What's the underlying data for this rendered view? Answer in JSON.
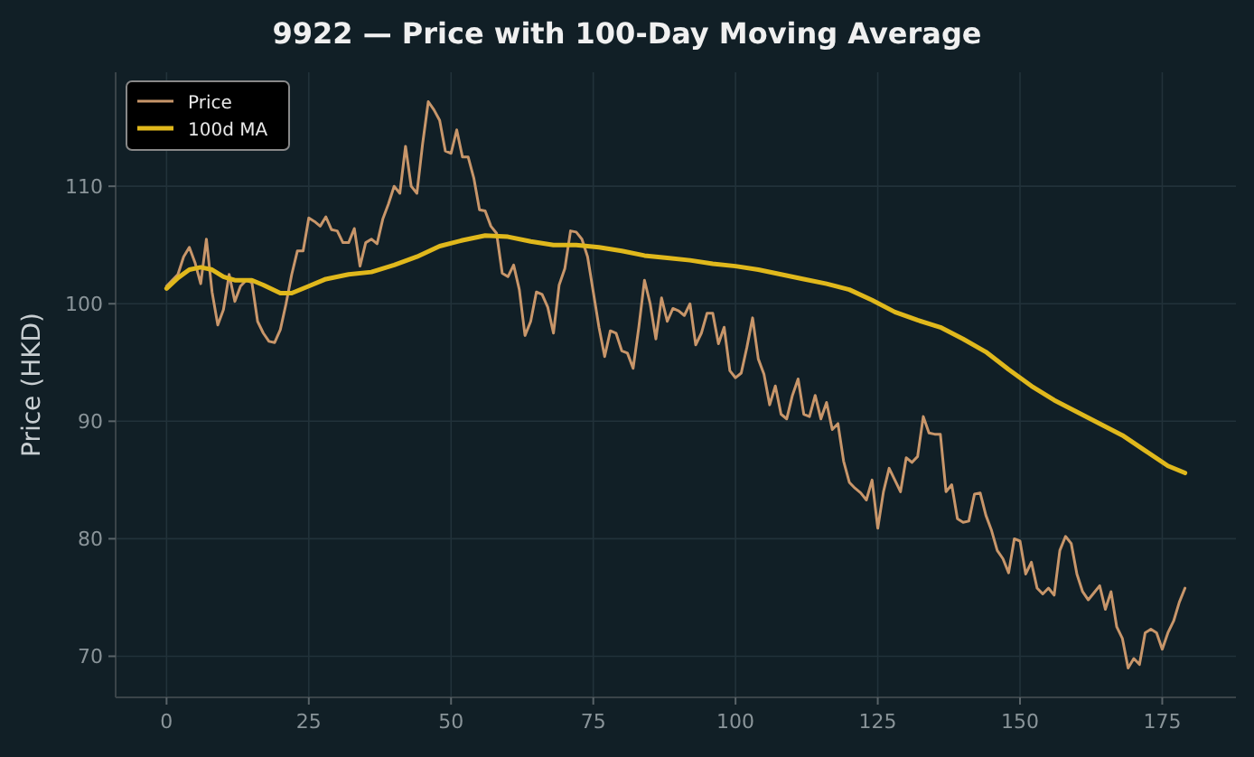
{
  "chart_data": {
    "type": "line",
    "title": "9922 — Price with 100-Day Moving Average",
    "ylabel": "Price (HKD)",
    "xlim": [
      -8.95,
      187.95
    ],
    "ylim": [
      66.5,
      119.7
    ],
    "xticks": [
      0,
      25,
      50,
      75,
      100,
      125,
      150,
      175
    ],
    "yticks": [
      70,
      80,
      90,
      100,
      110
    ],
    "grid": true,
    "legend": "top left",
    "series": [
      {
        "name": "Price",
        "color": "#c8966a",
        "x": [
          0,
          1,
          2,
          3,
          4,
          5,
          6,
          7,
          8,
          9,
          10,
          11,
          12,
          13,
          14,
          15,
          16,
          17,
          18,
          19,
          20,
          21,
          22,
          23,
          24,
          25,
          26,
          27,
          28,
          29,
          30,
          31,
          32,
          33,
          34,
          35,
          36,
          37,
          38,
          39,
          40,
          41,
          42,
          43,
          44,
          45,
          46,
          47,
          48,
          49,
          50,
          51,
          52,
          53,
          54,
          55,
          56,
          57,
          58,
          59,
          60,
          61,
          62,
          63,
          64,
          65,
          66,
          67,
          68,
          69,
          70,
          71,
          72,
          73,
          74,
          75,
          76,
          77,
          78,
          79,
          80,
          81,
          82,
          83,
          84,
          85,
          86,
          87,
          88,
          89,
          90,
          91,
          92,
          93,
          94,
          95,
          96,
          97,
          98,
          99,
          100,
          101,
          102,
          103,
          104,
          105,
          106,
          107,
          108,
          109,
          110,
          111,
          112,
          113,
          114,
          115,
          116,
          117,
          118,
          119,
          120,
          121,
          122,
          123,
          124,
          125,
          126,
          127,
          128,
          129,
          130,
          131,
          132,
          133,
          134,
          135,
          136,
          137,
          138,
          139,
          140,
          141,
          142,
          143,
          144,
          145,
          146,
          147,
          148,
          149,
          150,
          151,
          152,
          153,
          154,
          155,
          156,
          157,
          158,
          159,
          160,
          161,
          162,
          163,
          164,
          165,
          166,
          167,
          168,
          169,
          170,
          171,
          172,
          173,
          174,
          175,
          176,
          177,
          178,
          179
        ],
        "values": [
          101.5,
          102,
          102.5,
          104,
          104.8,
          103.5,
          101.7,
          105.5,
          101,
          98.2,
          99.5,
          102.5,
          100.2,
          101.5,
          102,
          101.8,
          98.5,
          97.5,
          96.8,
          96.7,
          97.8,
          100,
          102.5,
          104.5,
          104.5,
          107.3,
          107,
          106.6,
          107.4,
          106.3,
          106.2,
          105.2,
          105.2,
          106.4,
          103.2,
          105.2,
          105.5,
          105.1,
          107.2,
          108.5,
          110,
          109.4,
          113.4,
          110,
          109.4,
          113.6,
          117.2,
          116.5,
          115.6,
          113,
          112.8,
          114.8,
          112.5,
          112.5,
          110.7,
          108,
          107.9,
          106.6,
          106,
          102.6,
          102.3,
          103.3,
          101.2,
          97.3,
          98.5,
          101,
          100.8,
          99.7,
          97.5,
          101.6,
          103,
          106.2,
          106.1,
          105.5,
          104,
          101,
          98,
          95.5,
          97.7,
          97.5,
          96,
          95.8,
          94.5,
          98,
          102,
          100,
          97,
          100.5,
          98.5,
          99.6,
          99.4,
          99,
          100,
          96.5,
          97.5,
          99.2,
          99.2,
          96.6,
          98,
          94.3,
          93.7,
          94.1,
          96.3,
          98.8,
          95.3,
          94,
          91.4,
          93,
          90.6,
          90.2,
          92.2,
          93.6,
          90.6,
          90.4,
          92.2,
          90.2,
          91.6,
          89.3,
          89.8,
          86.6,
          84.8,
          84.3,
          83.9,
          83.3,
          85,
          80.9,
          84,
          86,
          85,
          84,
          86.9,
          86.5,
          87,
          90.4,
          89,
          88.9,
          88.9,
          84,
          84.6,
          81.7,
          81.4,
          81.5,
          83.8,
          83.9,
          82,
          80.7,
          79,
          78.3,
          77.1,
          80,
          79.8,
          77,
          78,
          75.8,
          75.3,
          75.8,
          75.2,
          79,
          80.2,
          79.6,
          77,
          75.5,
          74.8,
          75.4,
          76,
          74,
          75.5,
          72.5,
          71.5,
          69,
          69.8,
          69.3,
          72,
          72.3,
          72,
          70.6,
          72,
          73,
          74.6,
          75.8
        ]
      },
      {
        "name": "100d MA",
        "color": "#e0b81c",
        "x": [
          0,
          2,
          4,
          6,
          8,
          10,
          12,
          15,
          17,
          20,
          22,
          25,
          28,
          32,
          36,
          40,
          44,
          48,
          52,
          56,
          60,
          64,
          68,
          72,
          76,
          80,
          84,
          88,
          92,
          96,
          100,
          104,
          108,
          112,
          116,
          120,
          124,
          128,
          132,
          136,
          140,
          144,
          148,
          152,
          156,
          160,
          164,
          168,
          172,
          176,
          179
        ],
        "values": [
          101.3,
          102.2,
          102.9,
          103.1,
          102.9,
          102.3,
          102,
          102,
          101.6,
          100.9,
          100.9,
          101.5,
          102.1,
          102.5,
          102.7,
          103.3,
          104,
          104.9,
          105.4,
          105.8,
          105.7,
          105.3,
          105,
          105,
          104.8,
          104.5,
          104.1,
          103.9,
          103.7,
          103.4,
          103.2,
          102.9,
          102.5,
          102.1,
          101.7,
          101.2,
          100.3,
          99.3,
          98.6,
          98,
          97,
          95.9,
          94.4,
          93,
          91.8,
          90.8,
          89.8,
          88.8,
          87.5,
          86.2,
          85.6
        ]
      }
    ]
  }
}
